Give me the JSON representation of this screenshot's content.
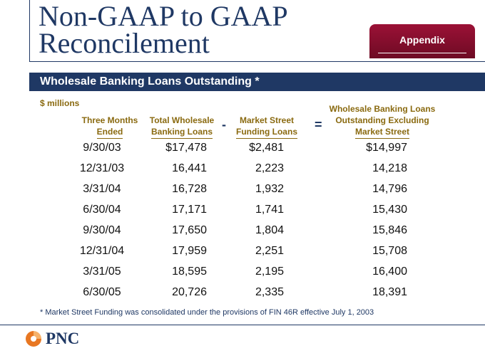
{
  "title": {
    "line1": "Non-GAAP to GAAP",
    "line2": "Reconcilement"
  },
  "appendix_label": "Appendix",
  "section_title": "Wholesale Banking Loans Outstanding *",
  "units": "$ millions",
  "columns": {
    "col1": {
      "line1": "Three Months",
      "line2": "Ended"
    },
    "col2": {
      "line1": "Total Wholesale",
      "line2": "Banking Loans"
    },
    "col3": {
      "line1": "Market Street",
      "line2": "Funding Loans"
    },
    "col4": {
      "line1": "Wholesale Banking Loans",
      "line2": "Outstanding Excluding",
      "line3": "Market Street"
    }
  },
  "operators": {
    "minus": "-",
    "equals": "="
  },
  "rows": [
    {
      "period": "9/30/03",
      "total": "$17,478",
      "market_street": "$2,481",
      "excluding": "$14,997"
    },
    {
      "period": "12/31/03",
      "total": "16,441",
      "market_street": "2,223",
      "excluding": "14,218"
    },
    {
      "period": "3/31/04",
      "total": "16,728",
      "market_street": "1,932",
      "excluding": "14,796"
    },
    {
      "period": "6/30/04",
      "total": "17,171",
      "market_street": "1,741",
      "excluding": "15,430"
    },
    {
      "period": "9/30/04",
      "total": "17,650",
      "market_street": "1,804",
      "excluding": "15,846"
    },
    {
      "period": "12/31/04",
      "total": "17,959",
      "market_street": "2,251",
      "excluding": "15,708"
    },
    {
      "period": "3/31/05",
      "total": "18,595",
      "market_street": "2,195",
      "excluding": "16,400"
    },
    {
      "period": "6/30/05",
      "total": "20,726",
      "market_street": "2,335",
      "excluding": "18,391"
    }
  ],
  "footnote": "* Market Street Funding was consolidated under the provisions of FIN 46R effective July 1, 2003",
  "logo": {
    "text": "PNC",
    "icon": "pnc-logo-icon"
  },
  "colors": {
    "navy": "#1f3864",
    "maroon": "#8b0f30",
    "gold": "#8a6a10",
    "logo_orange": "#e87722"
  }
}
